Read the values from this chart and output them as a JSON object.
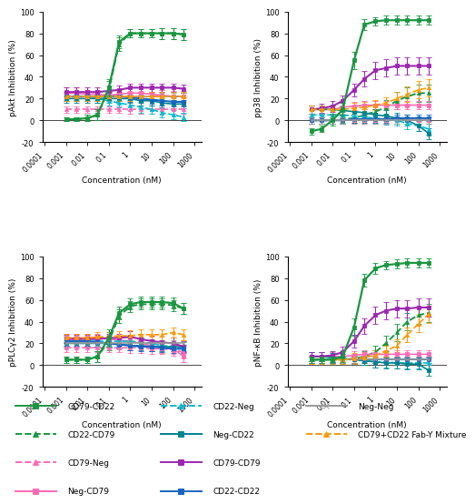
{
  "xlim": [
    8e-05,
    2000
  ],
  "ylim": [
    -20,
    100
  ],
  "xlabel": "Concentration (nM)",
  "panel_titles": [
    "pAkt Inhibition (%)",
    "pp38 Inhibition (%)",
    "pPLCγ2 Inhibition (%)",
    "pNF-κB Inhibition (%)"
  ],
  "series": {
    "CD79-CD22": {
      "color": "#1a9641",
      "linestyle": "-",
      "marker": "s",
      "linewidth": 1.6
    },
    "CD22-CD79": {
      "color": "#1a9641",
      "linestyle": "--",
      "marker": "^",
      "linewidth": 1.4
    },
    "CD79-Neg": {
      "color": "#ff69b4",
      "linestyle": "--",
      "marker": "^",
      "linewidth": 1.2
    },
    "Neg-CD79": {
      "color": "#ff69b4",
      "linestyle": "-",
      "marker": "s",
      "linewidth": 1.2
    },
    "CD22-Neg": {
      "color": "#00bcd4",
      "linestyle": "--",
      "marker": "^",
      "linewidth": 1.2
    },
    "Neg-CD22": {
      "color": "#00838f",
      "linestyle": "-",
      "marker": "s",
      "linewidth": 1.2
    },
    "CD79-CD79": {
      "color": "#9c27b0",
      "linestyle": "-",
      "marker": "s",
      "linewidth": 1.5
    },
    "CD22-CD22": {
      "color": "#1565c0",
      "linestyle": "-",
      "marker": "s",
      "linewidth": 1.5
    },
    "Neg-Neg": {
      "color": "#999999",
      "linestyle": "-",
      "marker": "x",
      "linewidth": 1.2
    },
    "CD79+CD22 Fab-Y Mixture": {
      "color": "#ff9800",
      "linestyle": "--",
      "marker": "^",
      "linewidth": 1.2
    }
  },
  "x_values": [
    0.001,
    0.003,
    0.01,
    0.03,
    0.1,
    0.3,
    1,
    3,
    10,
    30,
    100,
    300
  ],
  "panel_data": {
    "pAkt": {
      "CD79-CD22": {
        "y": [
          1,
          1,
          2,
          5,
          30,
          72,
          80,
          80,
          80,
          80,
          80,
          79
        ],
        "err": [
          2,
          2,
          3,
          5,
          8,
          6,
          4,
          4,
          4,
          5,
          5,
          5
        ]
      },
      "CD22-CD79": {
        "y": [
          1,
          1,
          2,
          5,
          28,
          70,
          80,
          80,
          80,
          80,
          80,
          79
        ],
        "err": [
          2,
          2,
          3,
          5,
          8,
          6,
          4,
          4,
          4,
          5,
          5,
          5
        ]
      },
      "CD79-Neg": {
        "y": [
          10,
          10,
          10,
          10,
          10,
          10,
          10,
          10,
          10,
          10,
          10,
          10
        ],
        "err": [
          3,
          3,
          3,
          3,
          3,
          3,
          4,
          4,
          4,
          4,
          4,
          4
        ]
      },
      "Neg-CD79": {
        "y": [
          25,
          25,
          24,
          24,
          23,
          24,
          25,
          25,
          24,
          23,
          22,
          22
        ],
        "err": [
          5,
          5,
          4,
          4,
          4,
          4,
          5,
          5,
          5,
          5,
          5,
          5
        ]
      },
      "CD22-Neg": {
        "y": [
          22,
          22,
          22,
          20,
          18,
          16,
          14,
          12,
          10,
          7,
          5,
          3
        ],
        "err": [
          4,
          4,
          4,
          4,
          4,
          4,
          5,
          5,
          4,
          4,
          4,
          4
        ]
      },
      "Neg-CD22": {
        "y": [
          20,
          20,
          20,
          20,
          20,
          20,
          20,
          18,
          18,
          16,
          15,
          15
        ],
        "err": [
          4,
          4,
          4,
          4,
          4,
          4,
          4,
          4,
          4,
          4,
          4,
          4
        ]
      },
      "CD79-CD79": {
        "y": [
          26,
          26,
          26,
          26,
          27,
          28,
          30,
          30,
          30,
          30,
          30,
          29
        ],
        "err": [
          4,
          4,
          4,
          4,
          4,
          4,
          4,
          4,
          4,
          4,
          4,
          4
        ]
      },
      "CD22-CD22": {
        "y": [
          22,
          22,
          22,
          22,
          22,
          22,
          21,
          20,
          19,
          18,
          17,
          17
        ],
        "err": [
          4,
          4,
          4,
          4,
          4,
          4,
          4,
          4,
          4,
          4,
          4,
          4
        ]
      },
      "Neg-Neg": {
        "y": [
          22,
          22,
          22,
          22,
          22,
          22,
          22,
          22,
          22,
          22,
          22,
          22
        ],
        "err": [
          3,
          3,
          3,
          3,
          3,
          3,
          3,
          3,
          3,
          3,
          3,
          3
        ]
      },
      "CD79+CD22 Fab-Y Mixture": {
        "y": [
          22,
          22,
          22,
          22,
          22,
          22,
          22,
          22,
          22,
          22,
          22,
          22
        ],
        "err": [
          4,
          4,
          4,
          4,
          4,
          4,
          4,
          4,
          4,
          4,
          4,
          4
        ]
      }
    },
    "pp38": {
      "CD79-CD22": {
        "y": [
          -10,
          -8,
          0,
          10,
          55,
          88,
          91,
          92,
          92,
          92,
          92,
          92
        ],
        "err": [
          3,
          3,
          5,
          6,
          8,
          5,
          4,
          4,
          4,
          4,
          4,
          4
        ]
      },
      "CD22-CD79": {
        "y": [
          0,
          0,
          0,
          1,
          2,
          5,
          8,
          12,
          18,
          22,
          25,
          25
        ],
        "err": [
          3,
          3,
          3,
          3,
          4,
          5,
          6,
          7,
          8,
          8,
          8,
          8
        ]
      },
      "CD79-Neg": {
        "y": [
          0,
          0,
          0,
          0,
          0,
          0,
          0,
          0,
          0,
          0,
          0,
          0
        ],
        "err": [
          3,
          3,
          3,
          3,
          3,
          3,
          3,
          3,
          3,
          3,
          3,
          3
        ]
      },
      "Neg-CD79": {
        "y": [
          10,
          10,
          10,
          12,
          13,
          14,
          14,
          14,
          14,
          14,
          14,
          14
        ],
        "err": [
          4,
          4,
          4,
          4,
          4,
          4,
          4,
          4,
          4,
          4,
          4,
          4
        ]
      },
      "CD22-Neg": {
        "y": [
          5,
          5,
          5,
          5,
          4,
          3,
          2,
          1,
          0,
          -3,
          -5,
          -8
        ],
        "err": [
          4,
          4,
          4,
          4,
          4,
          4,
          5,
          5,
          5,
          5,
          5,
          5
        ]
      },
      "Neg-CD22": {
        "y": [
          10,
          10,
          10,
          9,
          8,
          7,
          5,
          4,
          2,
          0,
          -5,
          -12
        ],
        "err": [
          4,
          4,
          4,
          4,
          5,
          5,
          5,
          5,
          5,
          5,
          5,
          5
        ]
      },
      "CD79-CD79": {
        "y": [
          10,
          11,
          13,
          18,
          28,
          38,
          46,
          48,
          50,
          50,
          50,
          50
        ],
        "err": [
          4,
          4,
          5,
          5,
          6,
          7,
          8,
          8,
          8,
          8,
          8,
          8
        ]
      },
      "CD22-CD22": {
        "y": [
          0,
          0,
          0,
          0,
          1,
          1,
          1,
          1,
          2,
          2,
          2,
          2
        ],
        "err": [
          3,
          3,
          3,
          3,
          3,
          3,
          3,
          3,
          3,
          3,
          3,
          3
        ]
      },
      "Neg-Neg": {
        "y": [
          0,
          0,
          0,
          0,
          0,
          0,
          0,
          0,
          0,
          0,
          0,
          0
        ],
        "err": [
          3,
          3,
          3,
          3,
          3,
          3,
          3,
          3,
          3,
          3,
          3,
          3
        ]
      },
      "CD79+CD22 Fab-Y Mixture": {
        "y": [
          10,
          10,
          10,
          10,
          11,
          12,
          14,
          16,
          20,
          24,
          28,
          30
        ],
        "err": [
          4,
          4,
          4,
          4,
          5,
          5,
          5,
          5,
          6,
          7,
          8,
          8
        ]
      }
    },
    "pPLCg2": {
      "CD79-CD22": {
        "y": [
          5,
          5,
          5,
          8,
          25,
          48,
          56,
          58,
          58,
          58,
          57,
          52
        ],
        "err": [
          3,
          3,
          3,
          5,
          8,
          6,
          5,
          5,
          5,
          5,
          5,
          5
        ]
      },
      "CD22-CD79": {
        "y": [
          5,
          5,
          5,
          8,
          22,
          45,
          54,
          56,
          56,
          56,
          55,
          52
        ],
        "err": [
          3,
          3,
          3,
          5,
          8,
          6,
          5,
          5,
          5,
          5,
          5,
          5
        ]
      },
      "CD79-Neg": {
        "y": [
          16,
          16,
          16,
          16,
          16,
          16,
          16,
          16,
          15,
          15,
          14,
          12
        ],
        "err": [
          4,
          4,
          4,
          4,
          4,
          4,
          5,
          5,
          5,
          5,
          5,
          5
        ]
      },
      "Neg-CD79": {
        "y": [
          25,
          25,
          25,
          25,
          24,
          23,
          22,
          20,
          18,
          16,
          15,
          8
        ],
        "err": [
          4,
          4,
          4,
          4,
          4,
          4,
          5,
          5,
          5,
          5,
          5,
          5
        ]
      },
      "CD22-Neg": {
        "y": [
          22,
          22,
          22,
          22,
          22,
          22,
          22,
          21,
          20,
          18,
          17,
          15
        ],
        "err": [
          4,
          4,
          4,
          4,
          4,
          4,
          4,
          4,
          4,
          4,
          4,
          4
        ]
      },
      "Neg-CD22": {
        "y": [
          20,
          20,
          20,
          20,
          20,
          19,
          18,
          18,
          17,
          17,
          17,
          17
        ],
        "err": [
          4,
          4,
          4,
          4,
          4,
          4,
          4,
          4,
          4,
          4,
          4,
          4
        ]
      },
      "CD79-CD79": {
        "y": [
          24,
          24,
          24,
          24,
          25,
          25,
          26,
          24,
          22,
          21,
          20,
          17
        ],
        "err": [
          4,
          4,
          4,
          4,
          4,
          4,
          5,
          5,
          5,
          5,
          5,
          5
        ]
      },
      "CD22-CD22": {
        "y": [
          22,
          22,
          22,
          21,
          20,
          19,
          18,
          17,
          17,
          16,
          15,
          15
        ],
        "err": [
          4,
          4,
          4,
          4,
          4,
          4,
          4,
          4,
          4,
          4,
          4,
          4
        ]
      },
      "Neg-Neg": {
        "y": [
          20,
          20,
          20,
          20,
          20,
          20,
          20,
          20,
          20,
          20,
          20,
          20
        ],
        "err": [
          3,
          3,
          3,
          3,
          3,
          3,
          3,
          3,
          3,
          3,
          3,
          3
        ]
      },
      "CD79+CD22 Fab-Y Mixture": {
        "y": [
          25,
          25,
          25,
          26,
          26,
          27,
          27,
          28,
          28,
          28,
          30,
          28
        ],
        "err": [
          4,
          4,
          4,
          4,
          4,
          4,
          5,
          5,
          5,
          5,
          5,
          5
        ]
      }
    },
    "pNFkB": {
      "CD79-CD22": {
        "y": [
          5,
          5,
          5,
          8,
          35,
          78,
          89,
          92,
          93,
          94,
          94,
          94
        ],
        "err": [
          3,
          3,
          3,
          5,
          8,
          6,
          5,
          4,
          4,
          4,
          4,
          4
        ]
      },
      "CD22-CD79": {
        "y": [
          5,
          5,
          5,
          5,
          6,
          8,
          12,
          20,
          30,
          40,
          46,
          48
        ],
        "err": [
          3,
          3,
          3,
          3,
          4,
          5,
          6,
          7,
          8,
          8,
          8,
          8
        ]
      },
      "CD79-Neg": {
        "y": [
          5,
          5,
          5,
          5,
          5,
          5,
          5,
          5,
          5,
          5,
          5,
          5
        ],
        "err": [
          3,
          3,
          3,
          3,
          3,
          3,
          3,
          3,
          3,
          3,
          3,
          3
        ]
      },
      "Neg-CD79": {
        "y": [
          8,
          8,
          8,
          8,
          9,
          10,
          10,
          10,
          10,
          10,
          10,
          10
        ],
        "err": [
          4,
          4,
          4,
          4,
          4,
          4,
          4,
          4,
          4,
          4,
          4,
          4
        ]
      },
      "CD22-Neg": {
        "y": [
          8,
          8,
          7,
          6,
          5,
          4,
          3,
          3,
          2,
          2,
          2,
          2
        ],
        "err": [
          4,
          4,
          4,
          4,
          4,
          4,
          5,
          5,
          5,
          5,
          5,
          5
        ]
      },
      "Neg-CD22": {
        "y": [
          8,
          8,
          7,
          6,
          5,
          4,
          3,
          2,
          2,
          1,
          1,
          -5
        ],
        "err": [
          4,
          4,
          4,
          4,
          4,
          4,
          5,
          5,
          5,
          5,
          5,
          5
        ]
      },
      "CD79-CD79": {
        "y": [
          8,
          8,
          9,
          12,
          22,
          36,
          46,
          50,
          52,
          52,
          53,
          53
        ],
        "err": [
          4,
          4,
          4,
          5,
          6,
          7,
          8,
          8,
          8,
          8,
          8,
          8
        ]
      },
      "CD22-CD22": {
        "y": [
          5,
          5,
          5,
          5,
          5,
          5,
          5,
          5,
          5,
          5,
          5,
          5
        ],
        "err": [
          3,
          3,
          3,
          3,
          3,
          3,
          3,
          3,
          3,
          3,
          3,
          3
        ]
      },
      "Neg-Neg": {
        "y": [
          5,
          5,
          5,
          5,
          5,
          5,
          5,
          5,
          5,
          5,
          5,
          5
        ],
        "err": [
          3,
          3,
          3,
          3,
          3,
          3,
          3,
          3,
          3,
          3,
          3,
          3
        ]
      },
      "CD79+CD22 Fab-Y Mixture": {
        "y": [
          5,
          5,
          5,
          5,
          6,
          7,
          9,
          13,
          18,
          28,
          38,
          47
        ],
        "err": [
          4,
          4,
          4,
          4,
          5,
          5,
          5,
          5,
          6,
          7,
          8,
          8
        ]
      }
    }
  },
  "legend_cols": [
    [
      [
        "CD79-CD22",
        "#1a9641",
        "-",
        "s"
      ],
      [
        "CD22-CD79",
        "#1a9641",
        "--",
        "^"
      ],
      [
        "CD79-Neg",
        "#ff69b4",
        "--",
        "^"
      ],
      [
        "Neg-CD79",
        "#ff69b4",
        "-",
        "s"
      ]
    ],
    [
      [
        "CD22-Neg",
        "#00bcd4",
        "--",
        "^"
      ],
      [
        "Neg-CD22",
        "#00838f",
        "-",
        "s"
      ],
      [
        "CD79-CD79",
        "#9c27b0",
        "-",
        "s"
      ],
      [
        "CD22-CD22",
        "#1565c0",
        "-",
        "s"
      ]
    ],
    [
      [
        "Neg-Neg",
        "#999999",
        "-",
        "x"
      ],
      [
        "CD79+CD22 Fab-Y Mixture",
        "#ff9800",
        "--",
        "^"
      ]
    ]
  ]
}
